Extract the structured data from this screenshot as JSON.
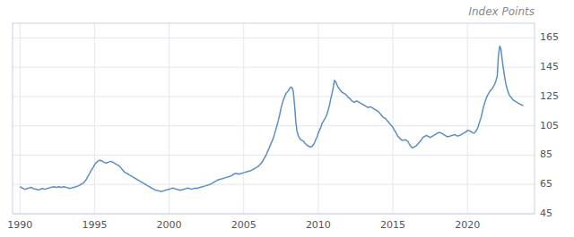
{
  "chart_data": {
    "type": "line",
    "title": "Index Points",
    "color": "#5b8ec4",
    "grid": true,
    "xlim": [
      1989.5,
      2024.5
    ],
    "xticks": [
      1990,
      1995,
      2000,
      2005,
      2010,
      2015,
      2020
    ],
    "ylim": [
      45,
      175
    ],
    "yticks": [
      45,
      65,
      85,
      105,
      125,
      145,
      165
    ],
    "x": [
      1990.0,
      1990.08,
      1990.17,
      1990.25,
      1990.33,
      1990.42,
      1990.5,
      1990.58,
      1990.67,
      1990.75,
      1990.83,
      1990.92,
      1991.0,
      1991.08,
      1991.17,
      1991.25,
      1991.33,
      1991.42,
      1991.5,
      1991.58,
      1991.67,
      1991.75,
      1991.83,
      1991.92,
      1992.0,
      1992.08,
      1992.17,
      1992.25,
      1992.33,
      1992.42,
      1992.5,
      1992.58,
      1992.67,
      1992.75,
      1992.83,
      1992.92,
      1993.0,
      1993.08,
      1993.17,
      1993.25,
      1993.33,
      1993.42,
      1993.5,
      1993.58,
      1993.67,
      1993.75,
      1993.83,
      1993.92,
      1994.0,
      1994.08,
      1994.17,
      1994.25,
      1994.33,
      1994.42,
      1994.5,
      1994.58,
      1994.67,
      1994.75,
      1994.83,
      1994.92,
      1995.0,
      1995.08,
      1995.17,
      1995.25,
      1995.33,
      1995.42,
      1995.5,
      1995.58,
      1995.67,
      1995.75,
      1995.83,
      1995.92,
      1996.0,
      1996.08,
      1996.17,
      1996.25,
      1996.33,
      1996.42,
      1996.5,
      1996.58,
      1996.67,
      1996.75,
      1996.83,
      1996.92,
      1997.0,
      1997.08,
      1997.17,
      1997.25,
      1997.33,
      1997.42,
      1997.5,
      1997.58,
      1997.67,
      1997.75,
      1997.83,
      1997.92,
      1998.0,
      1998.08,
      1998.17,
      1998.25,
      1998.33,
      1998.42,
      1998.5,
      1998.58,
      1998.67,
      1998.75,
      1998.83,
      1998.92,
      1999.0,
      1999.08,
      1999.17,
      1999.25,
      1999.33,
      1999.42,
      1999.5,
      1999.58,
      1999.67,
      1999.75,
      1999.83,
      1999.92,
      2000.0,
      2000.08,
      2000.17,
      2000.25,
      2000.33,
      2000.42,
      2000.5,
      2000.58,
      2000.67,
      2000.75,
      2000.83,
      2000.92,
      2001.0,
      2001.08,
      2001.17,
      2001.25,
      2001.33,
      2001.42,
      2001.5,
      2001.58,
      2001.67,
      2001.75,
      2001.83,
      2001.92,
      2002.0,
      2002.08,
      2002.17,
      2002.25,
      2002.33,
      2002.42,
      2002.5,
      2002.58,
      2002.67,
      2002.75,
      2002.83,
      2002.92,
      2003.0,
      2003.08,
      2003.17,
      2003.25,
      2003.33,
      2003.42,
      2003.5,
      2003.58,
      2003.67,
      2003.75,
      2003.83,
      2003.92,
      2004.0,
      2004.08,
      2004.17,
      2004.25,
      2004.33,
      2004.42,
      2004.5,
      2004.58,
      2004.67,
      2004.75,
      2004.83,
      2004.92,
      2005.0,
      2005.08,
      2005.17,
      2005.25,
      2005.33,
      2005.42,
      2005.5,
      2005.58,
      2005.67,
      2005.75,
      2005.83,
      2005.92,
      2006.0,
      2006.08,
      2006.17,
      2006.25,
      2006.33,
      2006.42,
      2006.5,
      2006.58,
      2006.67,
      2006.75,
      2006.83,
      2006.92,
      2007.0,
      2007.08,
      2007.17,
      2007.25,
      2007.33,
      2007.42,
      2007.5,
      2007.58,
      2007.67,
      2007.75,
      2007.83,
      2007.92,
      2008.0,
      2008.08,
      2008.17,
      2008.25,
      2008.33,
      2008.42,
      2008.5,
      2008.58,
      2008.67,
      2008.75,
      2008.83,
      2008.92,
      2009.0,
      2009.08,
      2009.17,
      2009.25,
      2009.33,
      2009.42,
      2009.5,
      2009.58,
      2009.67,
      2009.75,
      2009.83,
      2009.92,
      2010.0,
      2010.08,
      2010.17,
      2010.25,
      2010.33,
      2010.42,
      2010.5,
      2010.58,
      2010.67,
      2010.75,
      2010.83,
      2010.92,
      2011.0,
      2011.08,
      2011.17,
      2011.25,
      2011.33,
      2011.42,
      2011.5,
      2011.58,
      2011.67,
      2011.75,
      2011.83,
      2011.92,
      2012.0,
      2012.08,
      2012.17,
      2012.25,
      2012.33,
      2012.42,
      2012.5,
      2012.58,
      2012.67,
      2012.75,
      2012.83,
      2012.92,
      2013.0,
      2013.08,
      2013.17,
      2013.25,
      2013.33,
      2013.42,
      2013.5,
      2013.58,
      2013.67,
      2013.75,
      2013.83,
      2013.92,
      2014.0,
      2014.08,
      2014.17,
      2014.25,
      2014.33,
      2014.42,
      2014.5,
      2014.58,
      2014.67,
      2014.75,
      2014.83,
      2014.92,
      2015.0,
      2015.08,
      2015.17,
      2015.25,
      2015.33,
      2015.42,
      2015.5,
      2015.58,
      2015.67,
      2015.75,
      2015.83,
      2015.92,
      2016.0,
      2016.08,
      2016.17,
      2016.25,
      2016.33,
      2016.42,
      2016.5,
      2016.58,
      2016.67,
      2016.75,
      2016.83,
      2016.92,
      2017.0,
      2017.08,
      2017.17,
      2017.25,
      2017.33,
      2017.42,
      2017.5,
      2017.58,
      2017.67,
      2017.75,
      2017.83,
      2017.92,
      2018.0,
      2018.08,
      2018.17,
      2018.25,
      2018.33,
      2018.42,
      2018.5,
      2018.58,
      2018.67,
      2018.75,
      2018.83,
      2018.92,
      2019.0,
      2019.08,
      2019.17,
      2019.25,
      2019.33,
      2019.42,
      2019.5,
      2019.58,
      2019.67,
      2019.75,
      2019.83,
      2019.92,
      2020.0,
      2020.08,
      2020.17,
      2020.25,
      2020.33,
      2020.42,
      2020.5,
      2020.58,
      2020.67,
      2020.75,
      2020.83,
      2020.92,
      2021.0,
      2021.08,
      2021.17,
      2021.25,
      2021.33,
      2021.42,
      2021.5,
      2021.58,
      2021.67,
      2021.75,
      2021.83,
      2021.92,
      2022.0,
      2022.08,
      2022.17,
      2022.25,
      2022.33,
      2022.42,
      2022.5,
      2022.58,
      2022.67,
      2022.75,
      2022.83,
      2022.92,
      2023.0,
      2023.08,
      2023.17,
      2023.25,
      2023.33,
      2023.42,
      2023.5,
      2023.58,
      2023.67,
      2023.75
    ],
    "values": [
      63.5,
      63.0,
      62.5,
      62.0,
      61.8,
      62.0,
      62.2,
      62.5,
      62.8,
      63.0,
      62.5,
      62.0,
      62.0,
      61.8,
      61.5,
      61.3,
      61.5,
      62.0,
      62.2,
      62.0,
      61.8,
      62.0,
      62.3,
      62.5,
      62.8,
      63.0,
      63.2,
      63.5,
      63.3,
      63.0,
      63.2,
      63.5,
      63.3,
      63.0,
      63.2,
      63.5,
      63.3,
      63.0,
      62.8,
      62.5,
      62.3,
      62.5,
      62.8,
      63.0,
      63.2,
      63.5,
      63.8,
      64.0,
      64.5,
      65.0,
      65.5,
      66.0,
      67.0,
      68.0,
      69.5,
      71.0,
      72.5,
      74.0,
      75.5,
      77.0,
      78.5,
      79.5,
      80.5,
      81.0,
      81.5,
      81.3,
      81.0,
      80.5,
      80.0,
      79.5,
      79.8,
      80.2,
      80.5,
      80.8,
      80.5,
      80.0,
      79.5,
      79.0,
      78.5,
      78.0,
      77.5,
      76.5,
      75.5,
      74.5,
      73.5,
      73.0,
      72.5,
      72.0,
      71.5,
      71.0,
      70.5,
      70.0,
      69.5,
      69.0,
      68.5,
      68.0,
      67.5,
      67.0,
      66.5,
      66.0,
      65.5,
      65.0,
      64.5,
      64.0,
      63.5,
      63.0,
      62.5,
      62.0,
      61.5,
      61.2,
      61.0,
      60.8,
      60.5,
      60.3,
      60.2,
      60.5,
      60.8,
      61.0,
      61.3,
      61.5,
      61.8,
      62.0,
      62.3,
      62.5,
      62.3,
      62.0,
      61.8,
      61.5,
      61.3,
      61.0,
      61.3,
      61.5,
      61.8,
      62.0,
      62.3,
      62.5,
      62.3,
      62.0,
      61.8,
      62.0,
      62.3,
      62.5,
      62.3,
      62.5,
      62.8,
      63.0,
      63.3,
      63.5,
      63.8,
      64.0,
      64.3,
      64.5,
      64.8,
      65.0,
      65.5,
      66.0,
      66.5,
      67.0,
      67.5,
      68.0,
      68.3,
      68.5,
      68.8,
      69.0,
      69.3,
      69.5,
      69.8,
      70.0,
      70.3,
      70.5,
      71.0,
      71.5,
      72.0,
      72.3,
      72.5,
      72.3,
      72.0,
      72.3,
      72.5,
      72.8,
      73.0,
      73.3,
      73.5,
      73.8,
      74.0,
      74.3,
      74.5,
      75.0,
      75.5,
      76.0,
      76.5,
      77.0,
      77.5,
      78.5,
      79.5,
      80.5,
      82.0,
      83.5,
      85.0,
      87.0,
      89.0,
      91.0,
      93.0,
      95.0,
      97.0,
      100.0,
      103.0,
      106.0,
      109.0,
      113.0,
      117.0,
      120.0,
      123.0,
      125.0,
      127.0,
      128.0,
      129.0,
      130.5,
      131.5,
      131.0,
      128.0,
      118.0,
      107.0,
      101.0,
      98.0,
      96.5,
      95.5,
      95.0,
      94.5,
      93.5,
      92.5,
      91.8,
      91.2,
      90.8,
      90.5,
      91.0,
      92.0,
      93.5,
      95.5,
      97.5,
      100.0,
      102.0,
      104.0,
      106.5,
      108.0,
      109.5,
      111.0,
      113.0,
      116.0,
      119.0,
      123.0,
      127.0,
      131.0,
      136.0,
      135.0,
      133.0,
      131.5,
      130.0,
      129.0,
      128.0,
      127.5,
      127.0,
      126.5,
      125.5,
      124.5,
      124.0,
      123.0,
      122.0,
      121.5,
      121.0,
      121.5,
      122.0,
      121.5,
      121.0,
      120.5,
      120.0,
      119.5,
      119.0,
      118.5,
      118.0,
      117.5,
      117.8,
      118.0,
      117.5,
      117.0,
      116.5,
      116.0,
      115.5,
      115.0,
      114.0,
      113.0,
      112.0,
      111.0,
      110.5,
      110.0,
      109.0,
      108.0,
      107.0,
      106.0,
      105.0,
      104.0,
      102.5,
      101.0,
      99.5,
      98.0,
      97.0,
      96.0,
      95.5,
      95.0,
      95.3,
      95.5,
      95.0,
      94.5,
      93.0,
      91.5,
      90.5,
      90.0,
      90.5,
      91.0,
      91.5,
      92.5,
      93.5,
      94.5,
      95.5,
      97.0,
      97.5,
      98.0,
      98.5,
      98.0,
      97.5,
      97.0,
      97.5,
      98.0,
      98.5,
      99.0,
      99.5,
      100.0,
      100.5,
      100.3,
      100.0,
      99.5,
      99.0,
      98.5,
      98.0,
      97.5,
      97.8,
      98.0,
      98.3,
      98.5,
      98.8,
      99.0,
      98.5,
      98.0,
      98.3,
      98.5,
      99.0,
      99.5,
      100.0,
      100.5,
      101.0,
      102.0,
      101.8,
      101.5,
      101.0,
      100.5,
      100.0,
      100.5,
      101.5,
      103.0,
      105.5,
      108.0,
      111.0,
      114.5,
      118.0,
      121.0,
      123.5,
      125.5,
      127.0,
      128.5,
      129.5,
      130.5,
      132.0,
      133.5,
      136.0,
      139.0,
      153.0,
      159.5,
      157.0,
      150.0,
      143.5,
      138.0,
      133.5,
      130.0,
      127.5,
      125.5,
      124.5,
      123.5,
      122.5,
      122.0,
      121.5,
      121.0,
      120.5,
      120.0,
      119.5,
      119.2,
      118.8
    ]
  }
}
